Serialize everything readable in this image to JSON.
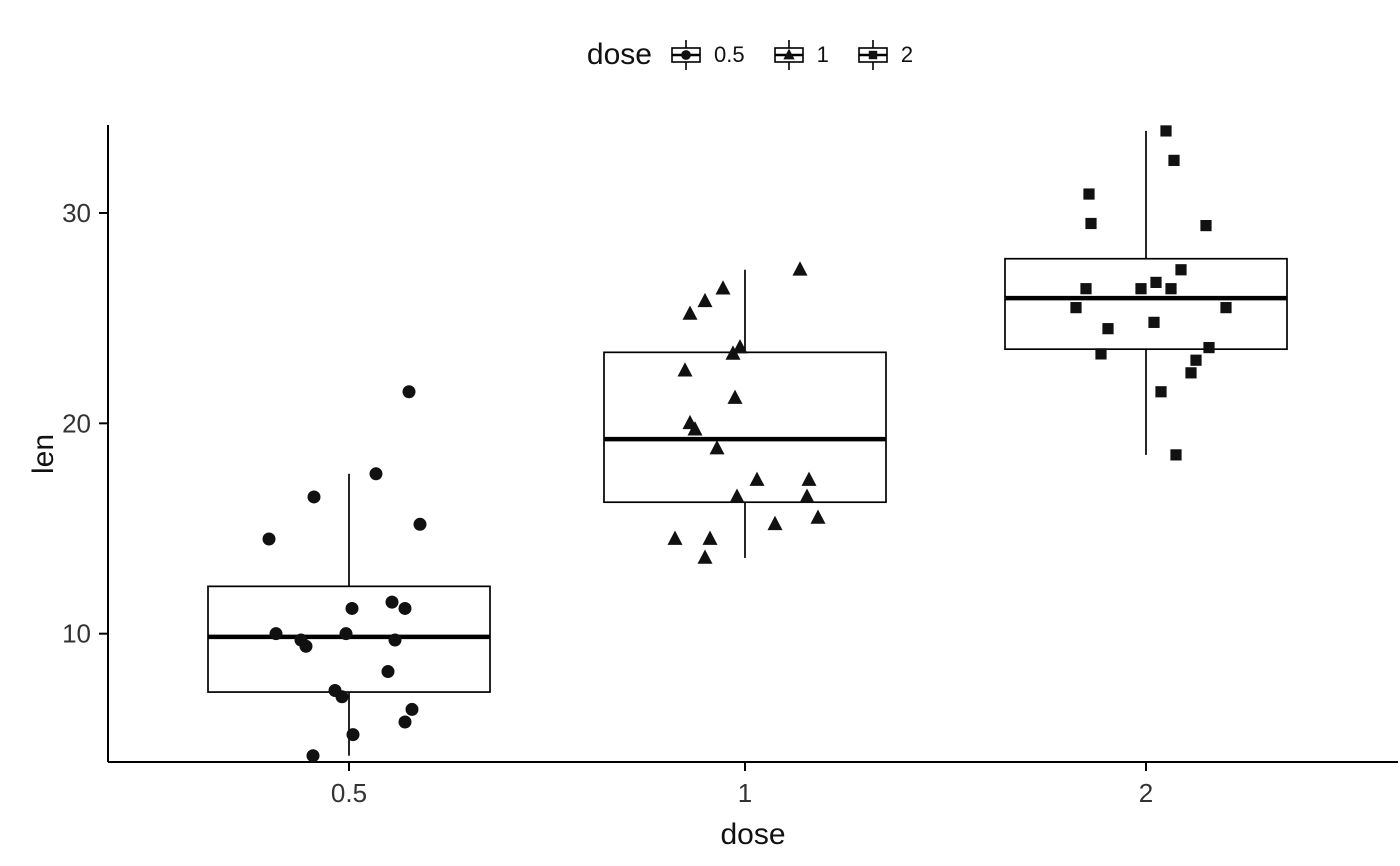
{
  "chart_data": {
    "type": "boxplot",
    "title": "",
    "xlabel": "dose",
    "ylabel": "len",
    "x_tick_labels": [
      "0.5",
      "1",
      "2"
    ],
    "y_tick_values": [
      10,
      20,
      30
    ],
    "ylim": [
      3.9,
      34.8
    ],
    "grid": false,
    "legend": {
      "title": "dose",
      "position": "top",
      "entries": [
        {
          "label": "0.5",
          "shape": "circle"
        },
        {
          "label": "1",
          "shape": "triangle"
        },
        {
          "label": "2",
          "shape": "square"
        }
      ]
    },
    "series": [
      {
        "name": "0.5",
        "shape": "circle",
        "box": {
          "lower_whisker": 4.2,
          "q1": 7.225,
          "median": 9.85,
          "q3": 12.25,
          "upper_whisker": 17.6
        },
        "points": [
          4.2,
          5.2,
          5.8,
          6.4,
          7.0,
          7.3,
          8.2,
          9.4,
          9.7,
          9.7,
          10.0,
          10.0,
          11.2,
          11.2,
          11.5,
          14.5,
          15.2,
          16.5,
          17.6,
          21.5
        ],
        "jitter_offsets": [
          -36,
          4,
          56,
          63,
          -7,
          -14,
          39,
          -43,
          -48,
          46,
          -73,
          -3,
          3,
          56,
          43,
          -80,
          71,
          -35,
          27,
          60
        ]
      },
      {
        "name": "1",
        "shape": "triangle",
        "box": {
          "lower_whisker": 13.6,
          "q1": 16.25,
          "median": 19.25,
          "q3": 23.375,
          "upper_whisker": 27.3
        },
        "points": [
          13.6,
          14.5,
          14.5,
          15.2,
          15.5,
          16.5,
          16.5,
          17.3,
          17.3,
          18.8,
          19.7,
          20.0,
          21.2,
          22.5,
          23.3,
          23.6,
          25.2,
          25.8,
          26.4,
          27.3
        ],
        "jitter_offsets": [
          -40,
          -70,
          -35,
          30,
          73,
          -8,
          62,
          12,
          64,
          -28,
          -50,
          -55,
          -10,
          -60,
          -12,
          -5,
          -55,
          -40,
          -22,
          55
        ]
      },
      {
        "name": "2",
        "shape": "square",
        "box": {
          "lower_whisker": 18.5,
          "q1": 23.525,
          "median": 25.95,
          "q3": 27.825,
          "upper_whisker": 33.9
        },
        "points": [
          18.5,
          21.5,
          22.4,
          23.0,
          23.3,
          23.6,
          24.5,
          24.8,
          25.5,
          25.5,
          26.4,
          26.4,
          26.4,
          26.7,
          27.3,
          29.4,
          29.5,
          30.9,
          32.5,
          33.9
        ],
        "jitter_offsets": [
          30,
          15,
          45,
          50,
          -45,
          63,
          -38,
          8,
          -70,
          80,
          -60,
          25,
          -5,
          10,
          35,
          60,
          -55,
          -57,
          28,
          20
        ]
      }
    ],
    "colors": {
      "axis": "#000000",
      "box_stroke": "#000000",
      "box_fill": "#ffffff",
      "point": "#111111",
      "tick_text": "#333333",
      "title_text": "#111111"
    }
  }
}
